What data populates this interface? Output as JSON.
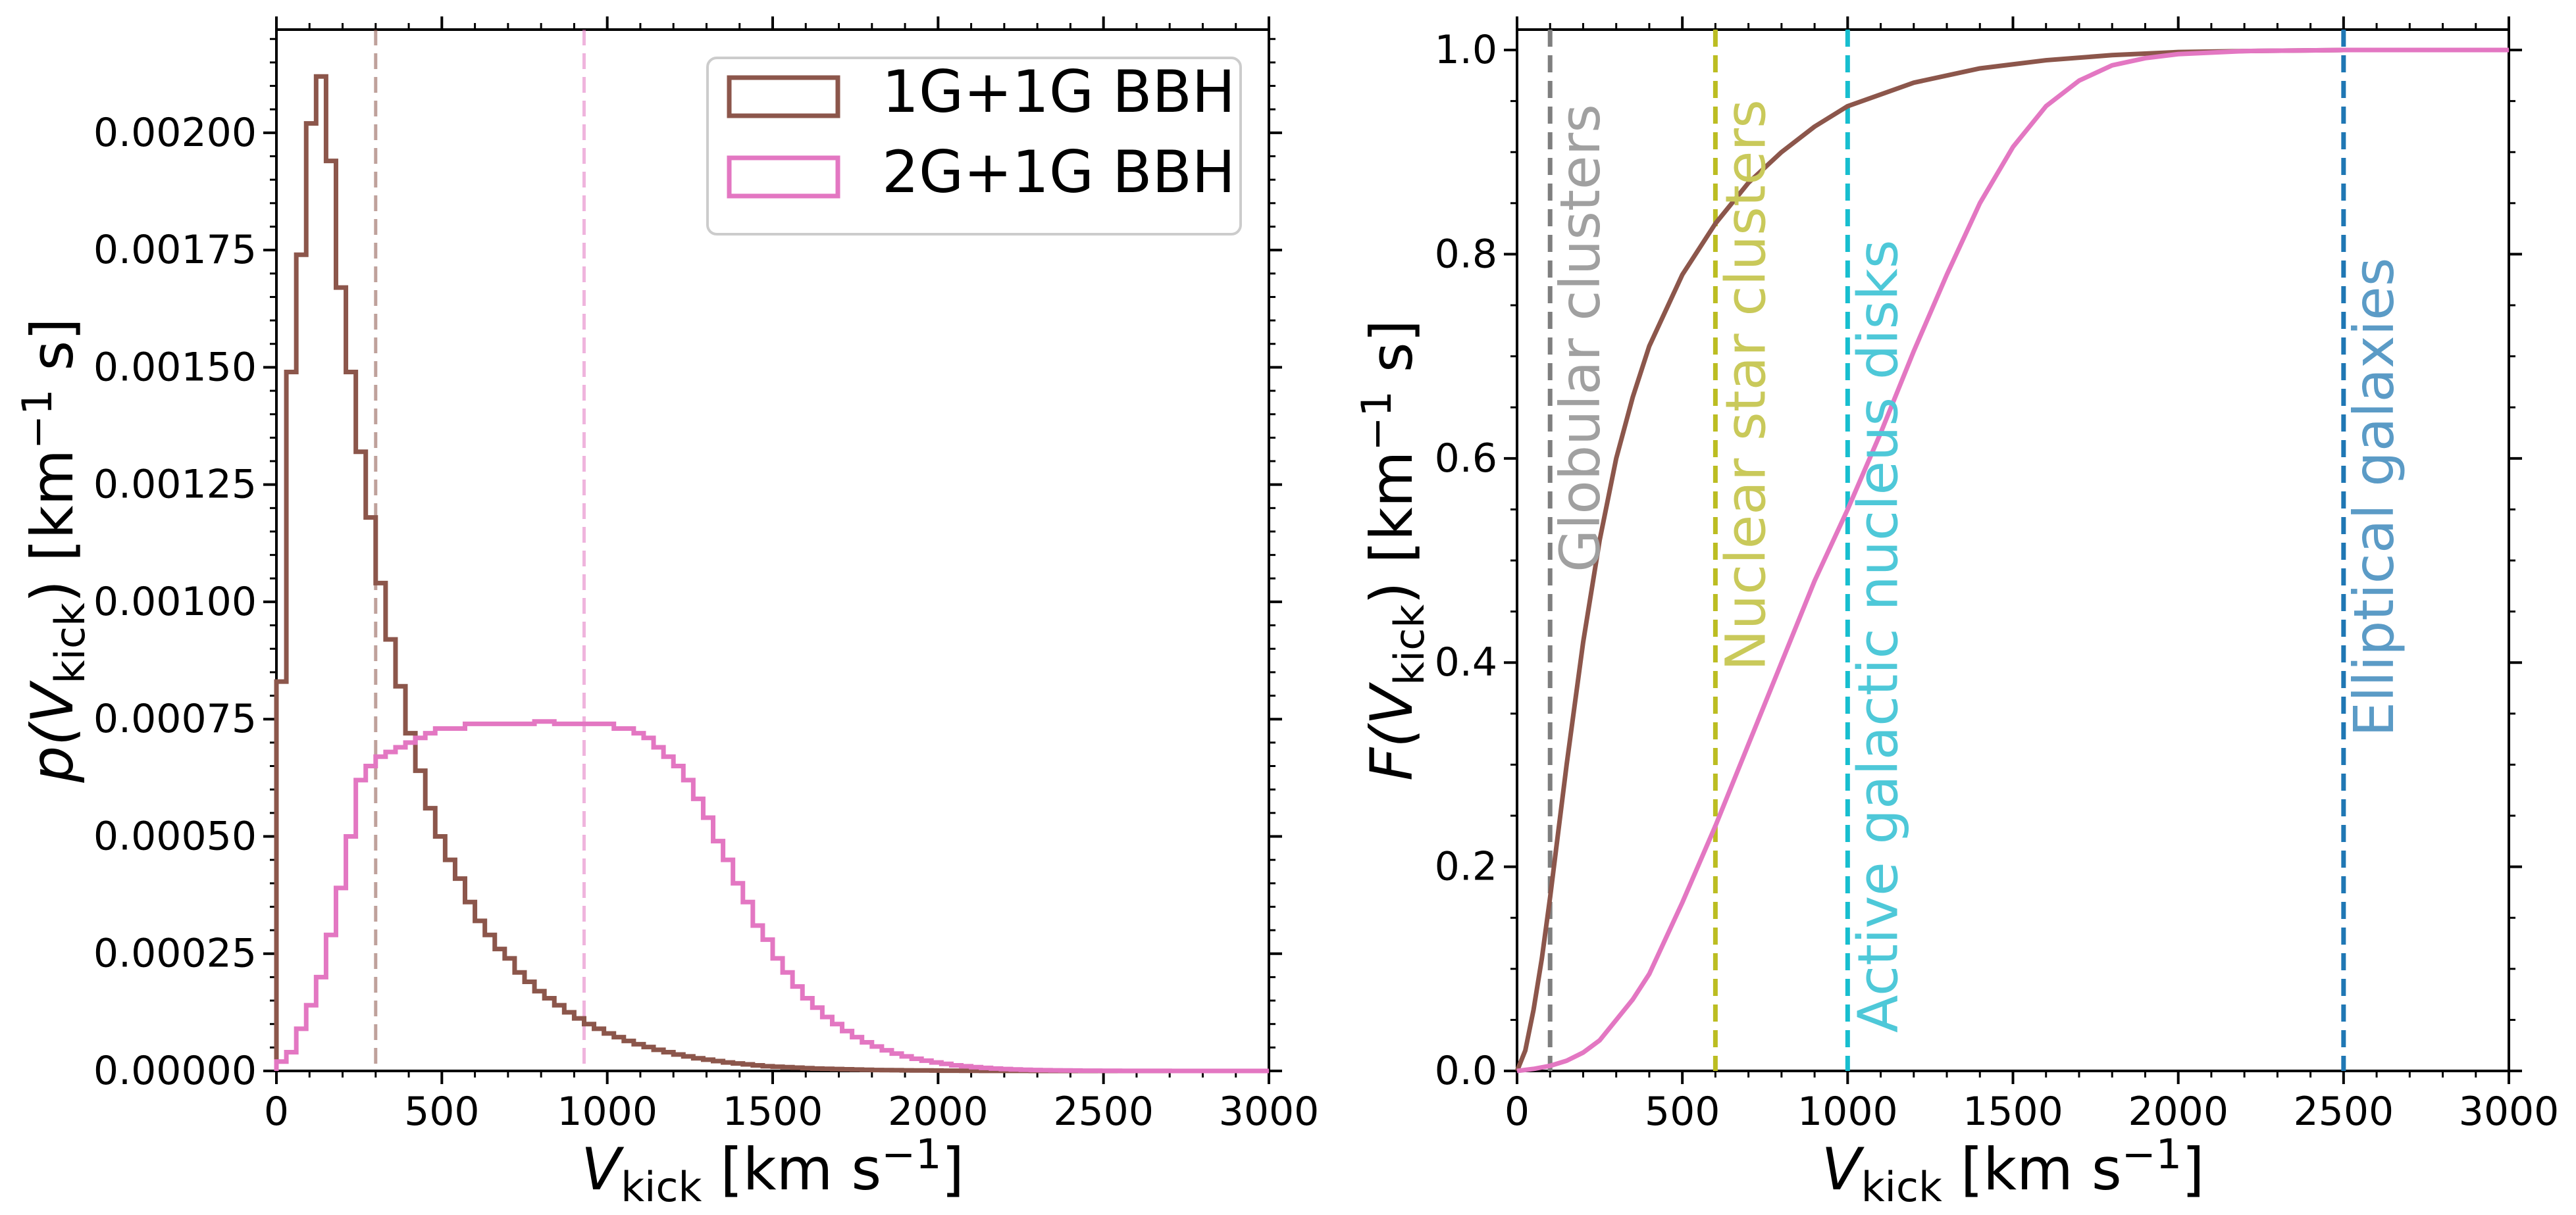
{
  "chart_data": [
    {
      "type": "histogram",
      "panel": "left",
      "xlabel": {
        "main": "V",
        "sub": "kick",
        "unit_a": " [km s",
        "sup": "−1",
        "unit_b": "]"
      },
      "ylabel": {
        "main": "p(V",
        "sub": "kick",
        "unit_a": ") [km",
        "sup": "−1",
        "unit_b": " s]"
      },
      "xlim": [
        0,
        3000
      ],
      "ylim": [
        0,
        0.00222
      ],
      "xticks": [
        "0",
        "500",
        "1000",
        "1500",
        "2000",
        "2500",
        "3000"
      ],
      "yticks": [
        "0.00000",
        "0.00025",
        "0.00050",
        "0.00075",
        "0.00100",
        "0.00125",
        "0.00150",
        "0.00175",
        "0.00200"
      ],
      "bin_width": 30,
      "series": [
        {
          "name": "1G+1G BBH",
          "color": "#8c564b",
          "vline": 300,
          "values": [
            0.00083,
            0.00149,
            0.00174,
            0.00202,
            0.00212,
            0.00194,
            0.00167,
            0.00149,
            0.00132,
            0.00118,
            0.00104,
            0.00092,
            0.00082,
            0.00072,
            0.00064,
            0.00056,
            0.0005,
            0.00045,
            0.00041,
            0.00036,
            0.00032,
            0.00029,
            0.00026,
            0.00024,
            0.00021,
            0.00019,
            0.00017,
            0.000155,
            0.00014,
            0.000125,
            0.000112,
            0.0001,
            9e-05,
            8e-05,
            7.2e-05,
            6.4e-05,
            5.7e-05,
            5.1e-05,
            4.5e-05,
            4e-05,
            3.5e-05,
            3.1e-05,
            2.7e-05,
            2.4e-05,
            2.1e-05,
            1.8e-05,
            1.6e-05,
            1.4e-05,
            1.2e-05,
            1e-05,
            9e-06,
            8e-06,
            7e-06,
            6e-06,
            5e-06,
            4.5e-06,
            4e-06,
            3.5e-06,
            3e-06,
            2.5e-06,
            2e-06,
            1.8e-06,
            1.5e-06,
            1.3e-06,
            1.1e-06,
            1e-06,
            8e-07,
            6e-07,
            5e-07,
            4e-07,
            3e-07,
            2e-07,
            2e-07,
            1e-07,
            1e-07,
            1e-07,
            0,
            0,
            0,
            0,
            0,
            0,
            0,
            0,
            0,
            0,
            0,
            0,
            0,
            0,
            0,
            0,
            0,
            0,
            0,
            0,
            0,
            0,
            0,
            0
          ]
        },
        {
          "name": "2G+1G BBH",
          "color": "#e377c2",
          "vline": 930,
          "values": [
            2e-05,
            4e-05,
            9e-05,
            0.00014,
            0.0002,
            0.00029,
            0.00039,
            0.0005,
            0.00062,
            0.00065,
            0.00067,
            0.00068,
            0.00069,
            0.0007,
            0.00071,
            0.00072,
            0.00073,
            0.00073,
            0.00073,
            0.00074,
            0.00074,
            0.00074,
            0.00074,
            0.00074,
            0.00074,
            0.00074,
            0.000745,
            0.000745,
            0.00074,
            0.00074,
            0.00074,
            0.00074,
            0.00074,
            0.00074,
            0.00073,
            0.00073,
            0.00072,
            0.00071,
            0.00069,
            0.00067,
            0.00065,
            0.00062,
            0.00058,
            0.00054,
            0.00049,
            0.00045,
            0.0004,
            0.00036,
            0.00031,
            0.00028,
            0.00024,
            0.00021,
            0.00018,
            0.000155,
            0.000135,
            0.000115,
            0.0001,
            8.5e-05,
            7.2e-05,
            6.1e-05,
            5.2e-05,
            4.4e-05,
            3.7e-05,
            3.1e-05,
            2.6e-05,
            2.2e-05,
            1.8e-05,
            1.5e-05,
            1.2e-05,
            1e-05,
            8e-06,
            6.5e-06,
            5e-06,
            4e-06,
            3.2e-06,
            2.5e-06,
            2e-06,
            1.5e-06,
            1.2e-06,
            1e-06,
            8e-07,
            6e-07,
            5e-07,
            4e-07,
            3e-07,
            2e-07,
            2e-07,
            1e-07,
            1e-07,
            1e-07,
            0,
            0,
            0,
            0,
            0,
            0,
            0,
            0,
            0,
            0
          ]
        }
      ]
    },
    {
      "type": "line",
      "panel": "right",
      "xlabel": {
        "main": "V",
        "sub": "kick",
        "unit_a": " [km s",
        "sup": "−1",
        "unit_b": "]"
      },
      "ylabel": {
        "main": "F(V",
        "sub": "kick",
        "unit_a": ") [km",
        "sup": "−1",
        "unit_b": " s]"
      },
      "xlim": [
        0,
        3000
      ],
      "ylim": [
        0,
        1.02
      ],
      "xticks": [
        "0",
        "500",
        "1000",
        "1500",
        "2000",
        "2500",
        "3000"
      ],
      "yticks": [
        "0.0",
        "0.2",
        "0.4",
        "0.6",
        "0.8",
        "1.0"
      ],
      "series": [
        {
          "name": "1G+1G BBH",
          "color": "#8c564b",
          "x": [
            0,
            25,
            50,
            75,
            100,
            150,
            200,
            250,
            300,
            350,
            400,
            500,
            600,
            700,
            800,
            900,
            1000,
            1200,
            1400,
            1600,
            1800,
            2000,
            2200,
            2500,
            3000
          ],
          "y": [
            0,
            0.02,
            0.06,
            0.11,
            0.17,
            0.3,
            0.42,
            0.52,
            0.6,
            0.66,
            0.71,
            0.78,
            0.83,
            0.87,
            0.9,
            0.925,
            0.945,
            0.968,
            0.982,
            0.99,
            0.995,
            0.998,
            0.999,
            1.0,
            1.0
          ]
        },
        {
          "name": "2G+1G BBH",
          "color": "#e377c2",
          "x": [
            0,
            50,
            100,
            150,
            200,
            250,
            300,
            350,
            400,
            500,
            600,
            700,
            800,
            900,
            1000,
            1100,
            1200,
            1300,
            1400,
            1500,
            1600,
            1700,
            1800,
            1900,
            2000,
            2200,
            2500,
            3000
          ],
          "y": [
            0,
            0.002,
            0.005,
            0.01,
            0.018,
            0.03,
            0.05,
            0.07,
            0.095,
            0.165,
            0.24,
            0.32,
            0.4,
            0.48,
            0.55,
            0.625,
            0.705,
            0.78,
            0.85,
            0.905,
            0.945,
            0.97,
            0.985,
            0.992,
            0.996,
            0.999,
            1.0,
            1.0
          ]
        }
      ],
      "vlines": [
        {
          "x": 100,
          "label": "Globular clusters",
          "line_color": "#7f7f7f",
          "text_color": "#a0a0a0"
        },
        {
          "x": 600,
          "label": "Nuclear star clusters",
          "line_color": "#bcbd22",
          "text_color": "#c9c95a"
        },
        {
          "x": 1000,
          "label": "Active galactic nucleus disks",
          "line_color": "#17becf",
          "text_color": "#4ec8d8"
        },
        {
          "x": 2500,
          "label": "Elliptical galaxies",
          "line_color": "#1f77b4",
          "text_color": "#5b9bc6"
        }
      ]
    }
  ]
}
